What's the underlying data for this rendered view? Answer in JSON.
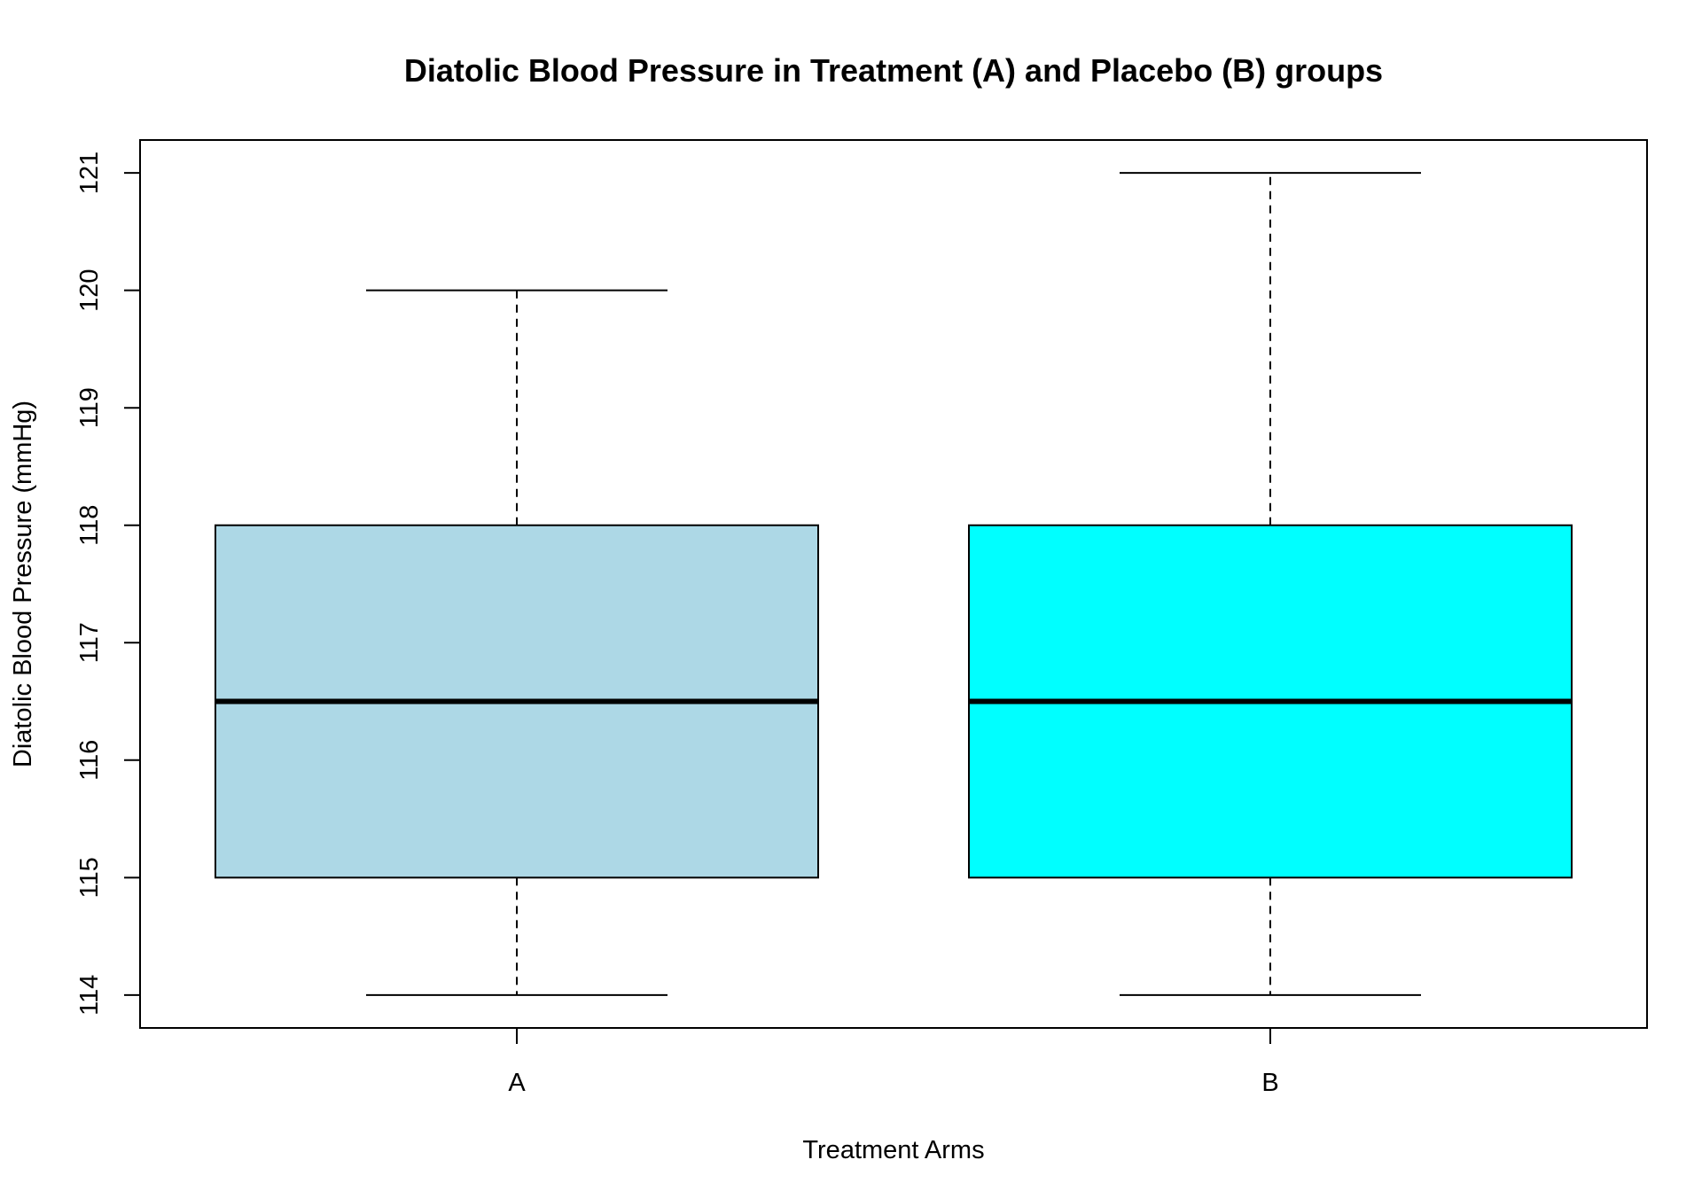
{
  "chart_data": {
    "type": "boxplot",
    "title": "Diatolic Blood Pressure in Treatment (A) and Placebo (B) groups",
    "xlabel": "Treatment Arms",
    "ylabel": "Diatolic Blood Pressure (mmHg)",
    "ylim": [
      113.72,
      121.28
    ],
    "yticks": [
      114,
      115,
      116,
      117,
      118,
      119,
      120,
      121
    ],
    "grid": false,
    "categories": [
      "A",
      "B"
    ],
    "boxes": [
      {
        "category": "A",
        "min": 114,
        "q1": 115,
        "median": 116.5,
        "q3": 118,
        "max": 120,
        "color": "#ADD8E6"
      },
      {
        "category": "B",
        "min": 114,
        "q1": 115,
        "median": 116.5,
        "q3": 118,
        "max": 121,
        "color": "#00FFFF"
      }
    ]
  }
}
